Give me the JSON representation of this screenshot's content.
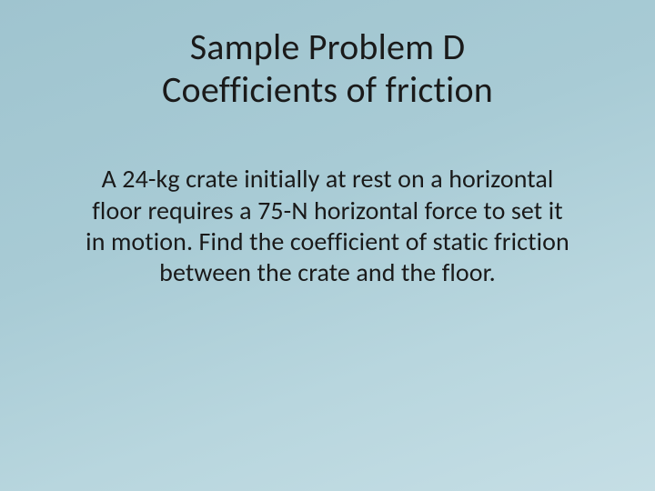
{
  "slide": {
    "title_line1": "Sample Problem D",
    "title_line2": "Coefficients of friction",
    "body": "A 24-kg crate initially at rest on a horizontal floor requires a 75-N horizontal force to set it in motion. Find the coefficient of static friction between the crate and the floor."
  },
  "style": {
    "bg_gradient_start": "#9fc4cf",
    "bg_gradient_end": "#c5dee5",
    "title_fontsize": 40,
    "body_fontsize": 28,
    "title_color": "#1a1a1a",
    "body_color": "#1a1a1a",
    "font_family": "Calibri"
  }
}
